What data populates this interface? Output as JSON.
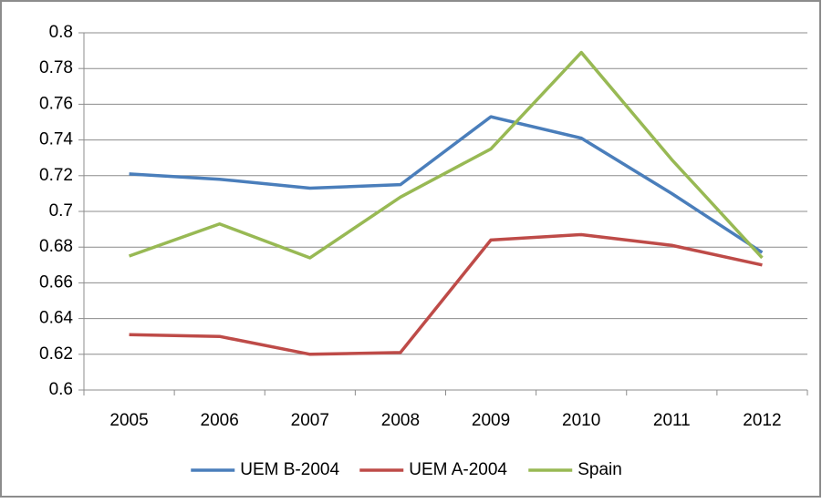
{
  "chart_data": {
    "type": "line",
    "categories": [
      "2005",
      "2006",
      "2007",
      "2008",
      "2009",
      "2010",
      "2011",
      "2012"
    ],
    "series": [
      {
        "name": "UEM B-2004",
        "color": "#4a7ebb",
        "values": [
          0.721,
          0.718,
          0.713,
          0.715,
          0.753,
          0.741,
          0.71,
          0.677
        ]
      },
      {
        "name": "UEM A-2004",
        "color": "#be4b48",
        "values": [
          0.631,
          0.63,
          0.62,
          0.621,
          0.684,
          0.687,
          0.681,
          0.67
        ]
      },
      {
        "name": "Spain",
        "color": "#98b954",
        "values": [
          0.675,
          0.693,
          0.674,
          0.708,
          0.735,
          0.789,
          0.729,
          0.674
        ]
      }
    ],
    "ylim": [
      0.6,
      0.8
    ],
    "yticks": [
      0.6,
      0.62,
      0.64,
      0.66,
      0.68,
      0.7,
      0.72,
      0.74,
      0.76,
      0.78,
      0.8
    ],
    "grid": true,
    "legend": "bottom"
  }
}
